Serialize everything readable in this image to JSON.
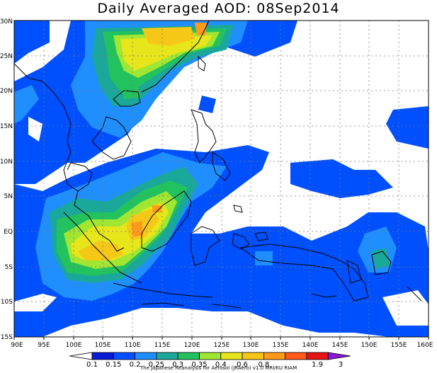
{
  "title": "Daily Averaged AOD: 08Sep2014",
  "lat_labels": [
    "30N",
    "25N",
    "20N",
    "15N",
    "10N",
    "5N",
    "EQ",
    "5S",
    "10S",
    "15S"
  ],
  "lon_labels": [
    "90E",
    "95E",
    "100E",
    "105E",
    "110E",
    "115E",
    "120E",
    "125E",
    "130E",
    "135E",
    "140E",
    "145E",
    "150E",
    "155E",
    "160E"
  ],
  "colorbar": {
    "colors": [
      "#ffffff",
      "#0a1ad6",
      "#0050ff",
      "#1f8fff",
      "#1aa89a",
      "#22c25e",
      "#a0e632",
      "#e6e61a",
      "#f5c818",
      "#ff9a1a",
      "#ff5a1a",
      "#e61414",
      "#8a18d8"
    ],
    "labels": [
      "0.1",
      "0.15",
      "0.2",
      "0.25",
      "0.3",
      "0.35",
      "0.4",
      "0.6",
      "0.8",
      "1.9",
      "3"
    ]
  },
  "credit": "The Japanese Reanalysis for Aerosol (JRAero) v1.0 MRI/KU RIAM"
}
